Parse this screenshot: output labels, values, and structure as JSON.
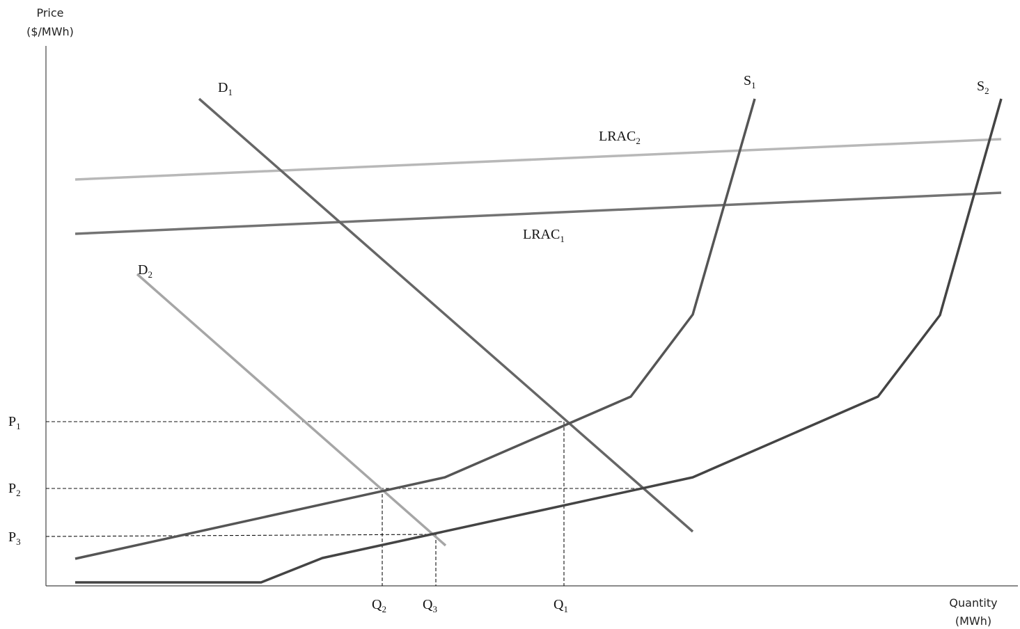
{
  "axes": {
    "y_label_line1": "Price",
    "y_label_line2": "($/MWh)",
    "x_label_line1": "Quantity",
    "x_label_line2": "(MWh)"
  },
  "curves": {
    "d1": {
      "base": "D",
      "sub": "1",
      "color": "#666666"
    },
    "d2": {
      "base": "D",
      "sub": "2",
      "color": "#a6a6a6"
    },
    "s1": {
      "base": "S",
      "sub": "1",
      "color": "#555555"
    },
    "s2": {
      "base": "S",
      "sub": "2",
      "color": "#444444"
    },
    "lrac1": {
      "base": "LRAC",
      "sub": "1",
      "color": "#737373"
    },
    "lrac2": {
      "base": "LRAC",
      "sub": "2",
      "color": "#b8b8b8"
    }
  },
  "price_labels": {
    "p1": {
      "base": "P",
      "sub": "1"
    },
    "p2": {
      "base": "P",
      "sub": "2"
    },
    "p3": {
      "base": "P",
      "sub": "3"
    }
  },
  "quantity_labels": {
    "q1": {
      "base": "Q",
      "sub": "1"
    },
    "q2": {
      "base": "Q",
      "sub": "2"
    },
    "q3": {
      "base": "Q",
      "sub": "3"
    }
  }
}
